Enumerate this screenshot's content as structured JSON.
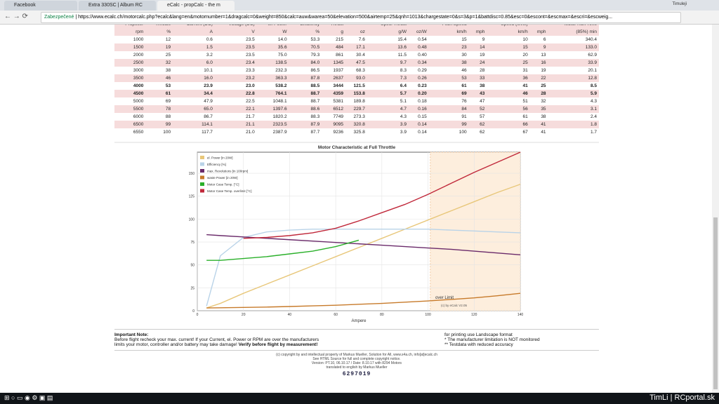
{
  "browser": {
    "tabs": [
      "Facebook",
      "Extra 330SC | Album RC",
      "eCalc - propCalc - the m"
    ],
    "secure": "Zabezpečené",
    "url": "https://www.ecalc.ch/motorcalc.php?ecalc&lang=en&motornumber=1&dragcalc=0&weight=850&calc=auw&warea=50&elevation=500&airtemp=25&qnh=1013&chargestate=0&s=3&p=1&battdisc=0.85&esc=0&escont=&escmax=&escri=&escweig...",
    "user": "Timuleji"
  },
  "table": {
    "headers": [
      "Propeller",
      "Throttle",
      "Current (DC)",
      "Voltage (DC)",
      "el. Power",
      "Efficiency",
      "Thrust",
      "",
      "Spec. Thrust",
      "",
      "Pitch Speed",
      "",
      "Speed (level)",
      "",
      "Motor Run Time"
    ],
    "units": [
      "rpm",
      "%",
      "A",
      "V",
      "W",
      "%",
      "g",
      "oz",
      "g/W",
      "oz/W",
      "km/h",
      "mph",
      "km/h",
      "mph",
      "(85%) min"
    ],
    "bold_rows": [
      6,
      7
    ],
    "rows": [
      [
        "1000",
        "12",
        "0.6",
        "23.5",
        "14.0",
        "53.3",
        "215",
        "7.6",
        "15.4",
        "0.54",
        "15",
        "9",
        "10",
        "6",
        "340.4"
      ],
      [
        "1500",
        "19",
        "1.5",
        "23.5",
        "35.6",
        "70.5",
        "484",
        "17.1",
        "13.6",
        "0.48",
        "23",
        "14",
        "15",
        "9",
        "133.0"
      ],
      [
        "2000",
        "25",
        "3.2",
        "23.5",
        "75.0",
        "79.3",
        "861",
        "30.4",
        "11.5",
        "0.40",
        "30",
        "19",
        "20",
        "13",
        "62.9"
      ],
      [
        "2500",
        "32",
        "6.0",
        "23.4",
        "138.5",
        "84.0",
        "1345",
        "47.5",
        "9.7",
        "0.34",
        "38",
        "24",
        "25",
        "16",
        "33.9"
      ],
      [
        "3000",
        "38",
        "10.1",
        "23.3",
        "232.3",
        "86.5",
        "1937",
        "68.3",
        "8.3",
        "0.29",
        "46",
        "28",
        "31",
        "19",
        "20.1"
      ],
      [
        "3500",
        "46",
        "16.0",
        "23.2",
        "363.3",
        "87.8",
        "2637",
        "93.0",
        "7.3",
        "0.26",
        "53",
        "33",
        "36",
        "22",
        "12.8"
      ],
      [
        "4000",
        "53",
        "23.9",
        "23.0",
        "538.2",
        "88.5",
        "3444",
        "121.5",
        "6.4",
        "0.23",
        "61",
        "38",
        "41",
        "25",
        "8.5"
      ],
      [
        "4500",
        "61",
        "34.4",
        "22.8",
        "764.1",
        "88.7",
        "4359",
        "153.8",
        "5.7",
        "0.20",
        "69",
        "43",
        "46",
        "28",
        "5.9"
      ],
      [
        "5000",
        "69",
        "47.9",
        "22.5",
        "1048.1",
        "88.7",
        "5381",
        "189.8",
        "5.1",
        "0.18",
        "76",
        "47",
        "51",
        "32",
        "4.3"
      ],
      [
        "5500",
        "78",
        "65.0",
        "22.1",
        "1397.6",
        "88.6",
        "6512",
        "229.7",
        "4.7",
        "0.16",
        "84",
        "52",
        "56",
        "35",
        "3.1"
      ],
      [
        "6000",
        "88",
        "86.7",
        "21.7",
        "1820.2",
        "88.3",
        "7749",
        "273.3",
        "4.3",
        "0.15",
        "91",
        "57",
        "61",
        "38",
        "2.4"
      ],
      [
        "6500",
        "99",
        "114.1",
        "21.1",
        "2323.5",
        "87.9",
        "9095",
        "320.8",
        "3.9",
        "0.14",
        "99",
        "62",
        "66",
        "41",
        "1.8"
      ],
      [
        "6550",
        "100",
        "117.7",
        "21.0",
        "2387.9",
        "87.7",
        "9236",
        "325.8",
        "3.9",
        "0.14",
        "100",
        "62",
        "67",
        "41",
        "1.7"
      ]
    ]
  },
  "chart": {
    "type": "line",
    "title": "Motor Characteristic at Full Throttle",
    "x_label": "Ampere",
    "over_limit_label": "over Limit",
    "credit": "(c) by eCalc  V2.05",
    "limit_x": 101,
    "x": [
      4,
      10,
      20,
      30,
      40,
      50,
      60,
      70,
      80,
      90,
      100,
      110,
      120,
      130,
      140
    ],
    "xlim": [
      0,
      140
    ],
    "xticks": [
      0,
      20,
      40,
      60,
      80,
      100,
      120,
      140
    ],
    "ylim": [
      0,
      173
    ],
    "yticks": [
      0,
      25,
      50,
      75,
      100,
      125,
      150
    ],
    "series": [
      {
        "name": "el. Power [in 20W]",
        "color": "#e8c77a",
        "values": [
          3,
          8,
          19,
          29,
          39,
          49,
          59,
          69,
          79,
          89,
          99,
          109,
          119,
          129,
          138
        ]
      },
      {
        "name": "Efficiency [%]",
        "color": "#b9d3e8",
        "values": [
          5,
          60,
          80,
          86,
          88,
          89,
          89,
          89,
          89,
          89,
          89,
          88,
          87,
          86,
          85
        ]
      },
      {
        "name": "max. Revolutions [in 100rpm]",
        "color": "#6a2a6a",
        "values": [
          83,
          82,
          80.5,
          79,
          77.5,
          76,
          74.5,
          73,
          71.5,
          70,
          68.5,
          67,
          65,
          63,
          61
        ]
      },
      {
        "name": "waste Power [in 20W]",
        "color": "#c77a2a",
        "values": [
          3,
          3.2,
          3.6,
          4,
          4.6,
          5.3,
          6,
          7,
          8,
          9.3,
          10.7,
          12.3,
          14,
          16.3,
          19
        ]
      },
      {
        "name": "Motor Case Temp. [°C]",
        "color": "#2ab02a",
        "values": [
          55,
          55,
          57,
          59,
          62,
          65,
          70,
          77,
          null,
          null,
          null,
          null,
          null,
          null,
          null
        ]
      },
      {
        "name": "Motor Case Temp. overlimit [°C]",
        "color": "#c0283a",
        "values": [
          null,
          null,
          79,
          80,
          82,
          85,
          90,
          98,
          107,
          116,
          127,
          139,
          151,
          162,
          173
        ]
      }
    ]
  },
  "notes": {
    "title": "Important Note:",
    "line1": "Before flight recheck your max. current! If your Current, el. Power or RPM are over the manufacturers",
    "line2": "limits your motor, controller and/or battery may take damage! ",
    "line2_bold": "Verify before flight by measurement!",
    "right": [
      "for printing use Landscape format",
      "* The manufacturer limitation is NOT monitored",
      "** Testdata with reduced accuracy"
    ]
  },
  "footer": {
    "lines": [
      "(c) copyright by and intellectual property of Markus Mueller, Solution for All, www.s4a.ch, info[at]ecalc.ch",
      "See HTML Source for full and complete copyright notice.",
      "Version: PT.10, 06.10.17 / Date: 8.10.17 with 8294 Motors",
      "translated to english by Markus Mueller"
    ],
    "counter": "6297019"
  },
  "watermark": "TimLi | RCportal.sk"
}
